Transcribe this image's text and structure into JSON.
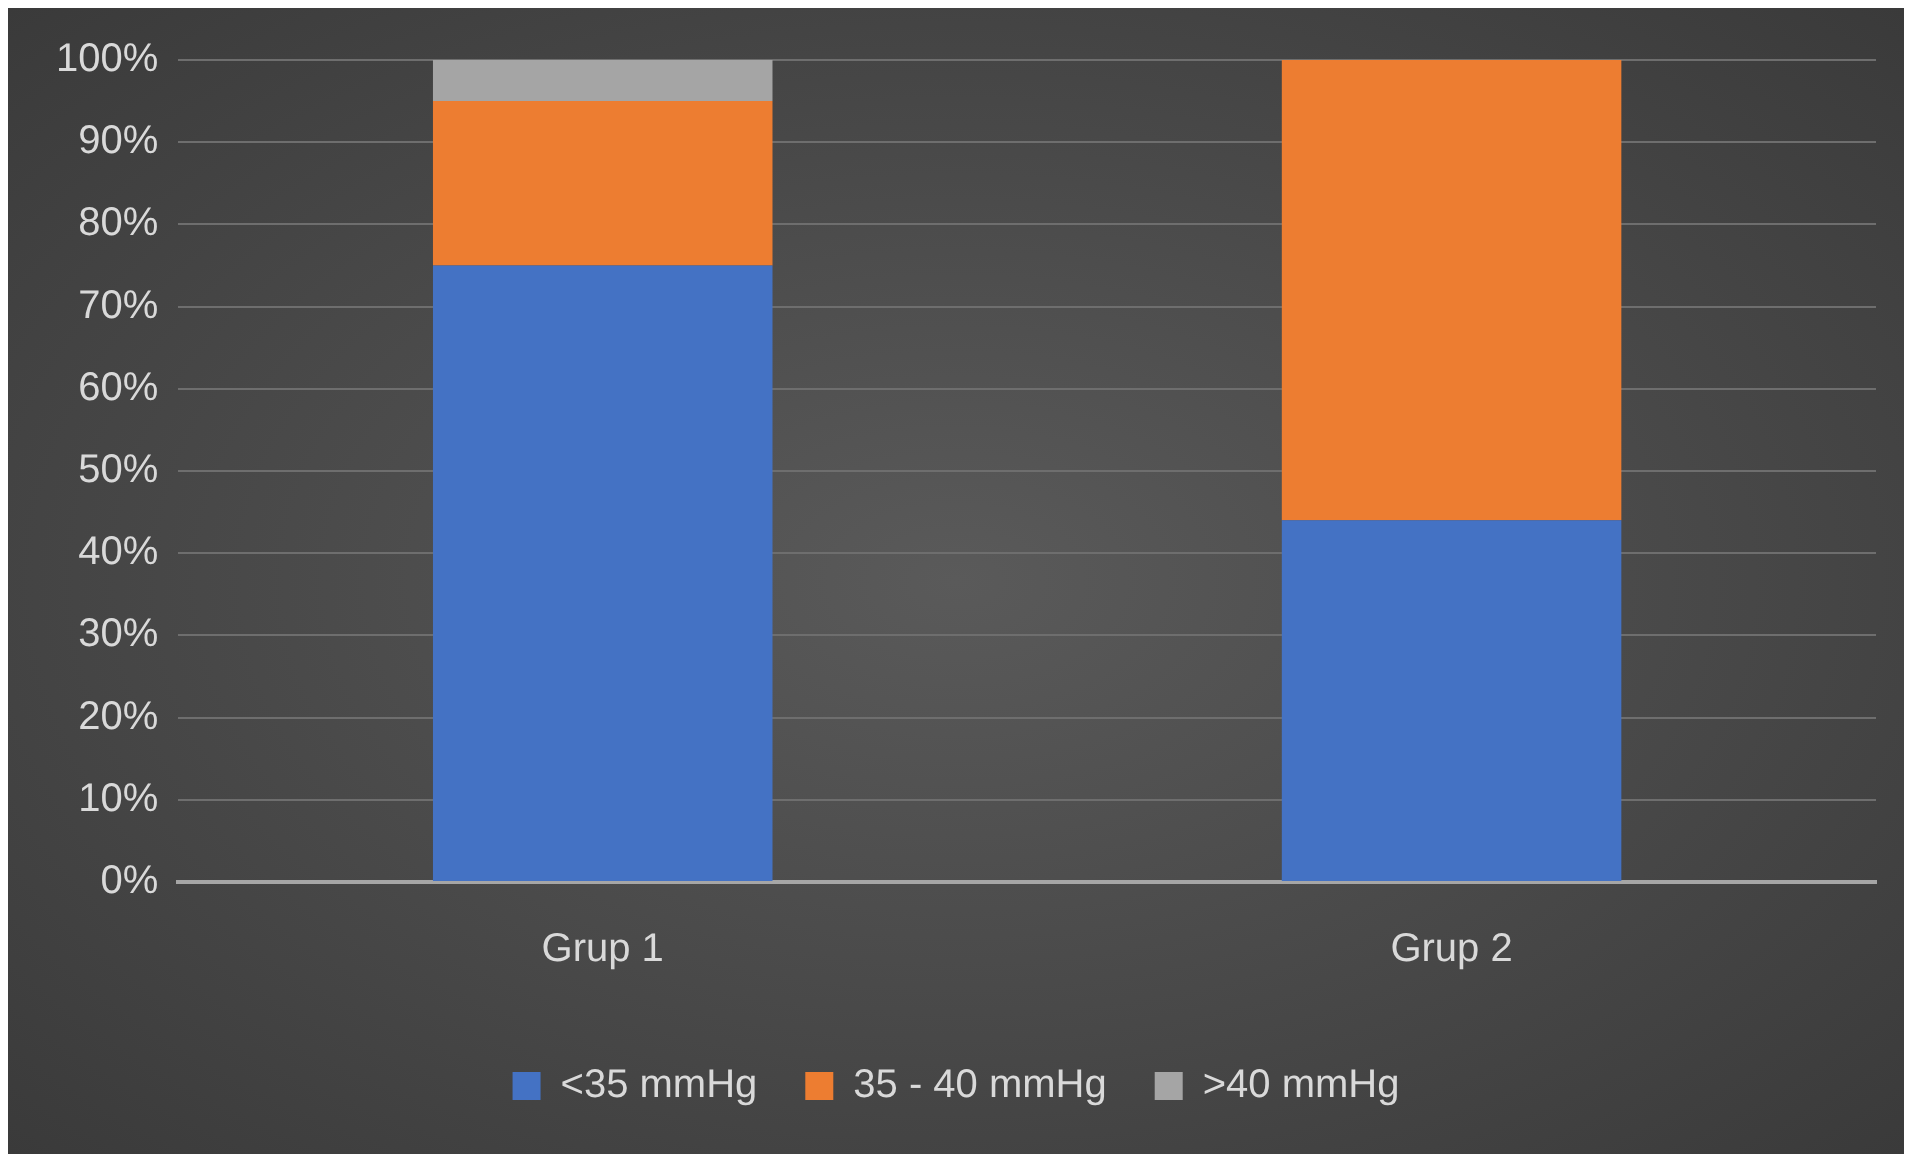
{
  "chart_data": {
    "type": "bar",
    "stacked": true,
    "categories": [
      "Grup 1",
      "Grup 2"
    ],
    "series": [
      {
        "name": "<35 mmHg",
        "color": "#4472c4",
        "values": [
          75,
          44
        ]
      },
      {
        "name": "35 - 40 mmHg",
        "color": "#ed7d31",
        "values": [
          20,
          56
        ]
      },
      {
        "name": ">40 mmHg",
        "color": "#a5a5a5",
        "values": [
          5,
          0
        ]
      }
    ],
    "ylim": [
      0,
      100
    ],
    "yticks": [
      {
        "value": 0,
        "label": "0%"
      },
      {
        "value": 10,
        "label": "10%"
      },
      {
        "value": 20,
        "label": "20%"
      },
      {
        "value": 30,
        "label": "30%"
      },
      {
        "value": 40,
        "label": "40%"
      },
      {
        "value": 50,
        "label": "50%"
      },
      {
        "value": 60,
        "label": "60%"
      },
      {
        "value": 70,
        "label": "70%"
      },
      {
        "value": 80,
        "label": "80%"
      },
      {
        "value": 90,
        "label": "90%"
      },
      {
        "value": 100,
        "label": "100%"
      }
    ],
    "grid": "y",
    "legend": "bottom"
  }
}
